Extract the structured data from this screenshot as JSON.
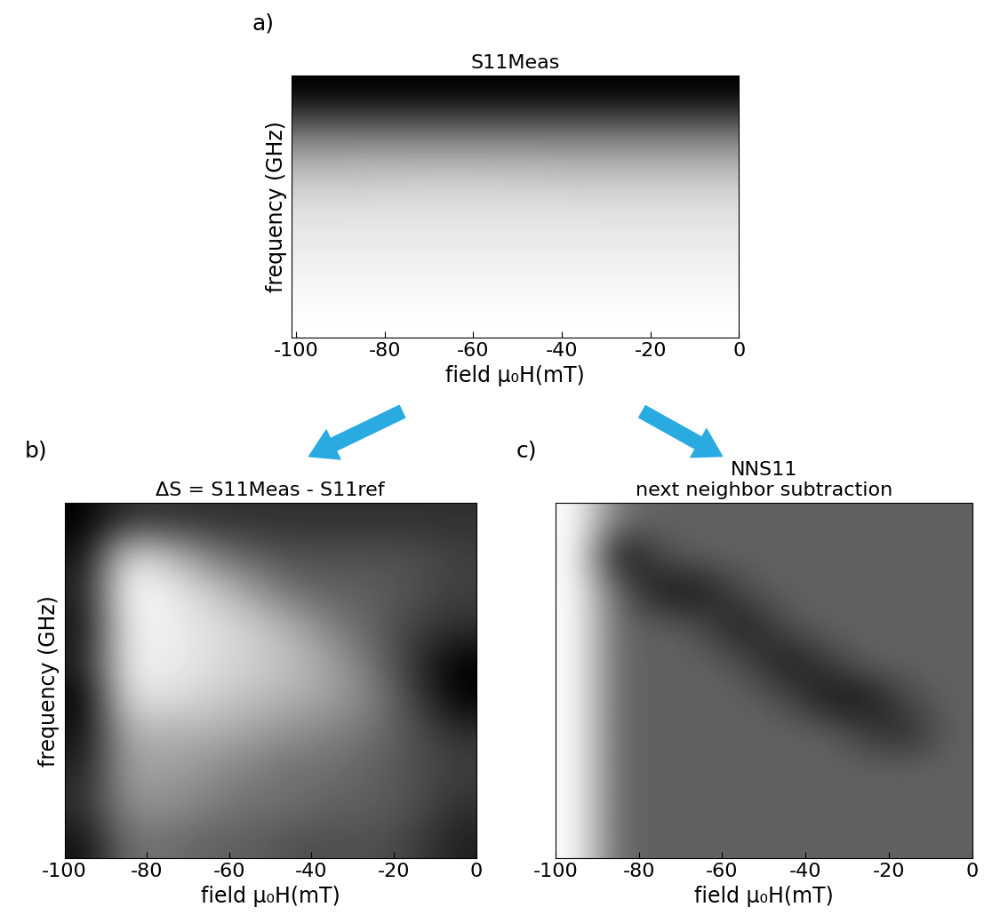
{
  "chart_data": [
    {
      "type": "heatmap",
      "annotations": [
        "a)"
      ],
      "title": "S11Meas",
      "xlabel": "field μ₀H(mT)",
      "ylabel": "frequency (GHz)",
      "xlim": [
        -101,
        0
      ],
      "xticks": [
        -100,
        -80,
        -60,
        -40,
        -20,
        0
      ],
      "tick_labels": "x",
      "cells": [
        [
          0.1,
          0.1,
          0.1,
          0.1,
          0.1,
          0.1,
          0.1,
          0.1,
          0.1,
          0.1
        ],
        [
          0.3,
          0.3,
          0.3,
          0.3,
          0.3,
          0.3,
          0.3,
          0.3,
          0.3,
          0.3
        ],
        [
          0.55,
          0.55,
          0.55,
          0.55,
          0.55,
          0.55,
          0.55,
          0.55,
          0.55,
          0.55
        ],
        [
          0.72,
          0.72,
          0.73,
          0.73,
          0.73,
          0.72,
          0.72,
          0.72,
          0.72,
          0.72
        ],
        [
          0.82,
          0.82,
          0.83,
          0.83,
          0.83,
          0.83,
          0.82,
          0.82,
          0.82,
          0.82
        ],
        [
          0.88,
          0.88,
          0.88,
          0.88,
          0.88,
          0.88,
          0.88,
          0.88,
          0.88,
          0.88
        ],
        [
          0.9,
          0.9,
          0.9,
          0.9,
          0.9,
          0.9,
          0.9,
          0.9,
          0.9,
          0.9
        ],
        [
          0.93,
          0.93,
          0.93,
          0.93,
          0.93,
          0.93,
          0.93,
          0.93,
          0.93,
          0.93
        ],
        [
          0.95,
          0.95,
          0.95,
          0.95,
          0.95,
          0.95,
          0.95,
          0.95,
          0.95,
          0.95
        ],
        [
          0.97,
          0.97,
          0.97,
          0.97,
          0.97,
          0.97,
          0.97,
          0.97,
          0.97,
          0.97
        ]
      ]
    },
    {
      "type": "heatmap",
      "annotations": [
        "b)"
      ],
      "title": "ΔS = S11Meas - S11ref",
      "xlabel": "field μ₀H(mT)",
      "ylabel": "frequency (GHz)",
      "xlim": [
        -100,
        0
      ],
      "xticks": [
        -100,
        -80,
        -60,
        -40,
        -20,
        0
      ],
      "tick_labels": "x",
      "cells": [
        [
          0.15,
          0.3,
          0.3,
          0.3,
          0.3,
          0.3,
          0.3,
          0.3,
          0.3,
          0.3
        ],
        [
          0.2,
          0.85,
          0.75,
          0.55,
          0.45,
          0.4,
          0.4,
          0.4,
          0.4,
          0.35
        ],
        [
          0.25,
          0.95,
          0.9,
          0.8,
          0.65,
          0.5,
          0.45,
          0.45,
          0.4,
          0.35
        ],
        [
          0.2,
          0.9,
          0.9,
          0.85,
          0.8,
          0.7,
          0.55,
          0.45,
          0.35,
          0.3
        ],
        [
          0.25,
          0.9,
          0.9,
          0.85,
          0.8,
          0.75,
          0.65,
          0.5,
          0.3,
          0.15
        ],
        [
          0.15,
          0.85,
          0.85,
          0.8,
          0.75,
          0.7,
          0.65,
          0.55,
          0.35,
          0.15
        ],
        [
          0.2,
          0.7,
          0.7,
          0.7,
          0.65,
          0.6,
          0.55,
          0.5,
          0.4,
          0.3
        ],
        [
          0.25,
          0.65,
          0.65,
          0.6,
          0.55,
          0.5,
          0.5,
          0.45,
          0.4,
          0.35
        ],
        [
          0.3,
          0.6,
          0.6,
          0.55,
          0.5,
          0.5,
          0.45,
          0.45,
          0.4,
          0.3
        ],
        [
          0.2,
          0.5,
          0.5,
          0.45,
          0.45,
          0.4,
          0.4,
          0.4,
          0.35,
          0.25
        ]
      ]
    },
    {
      "type": "heatmap",
      "annotations": [
        "c)"
      ],
      "title": "NNS11",
      "subtitle": "next neighbor subtraction",
      "xlabel": "field μ₀H(mT)",
      "xlim": [
        -100,
        0
      ],
      "xticks": [
        -100,
        -80,
        -60,
        -40,
        -20,
        0
      ],
      "tick_labels": "x",
      "cells": [
        [
          0.85,
          0.5,
          0.45,
          0.45,
          0.45,
          0.45,
          0.45,
          0.45,
          0.45,
          0.45
        ],
        [
          0.85,
          0.2,
          0.4,
          0.45,
          0.45,
          0.45,
          0.45,
          0.45,
          0.45,
          0.45
        ],
        [
          0.85,
          0.45,
          0.25,
          0.25,
          0.4,
          0.45,
          0.45,
          0.45,
          0.45,
          0.45
        ],
        [
          0.85,
          0.45,
          0.45,
          0.4,
          0.25,
          0.4,
          0.45,
          0.45,
          0.45,
          0.45
        ],
        [
          0.85,
          0.45,
          0.45,
          0.45,
          0.4,
          0.25,
          0.35,
          0.45,
          0.45,
          0.45
        ],
        [
          0.85,
          0.45,
          0.45,
          0.45,
          0.45,
          0.4,
          0.25,
          0.25,
          0.4,
          0.45
        ],
        [
          0.85,
          0.45,
          0.45,
          0.45,
          0.45,
          0.45,
          0.45,
          0.35,
          0.3,
          0.45
        ],
        [
          0.85,
          0.45,
          0.45,
          0.45,
          0.45,
          0.45,
          0.45,
          0.45,
          0.45,
          0.45
        ],
        [
          0.85,
          0.45,
          0.45,
          0.45,
          0.45,
          0.45,
          0.45,
          0.45,
          0.45,
          0.45
        ],
        [
          0.85,
          0.45,
          0.45,
          0.45,
          0.45,
          0.45,
          0.45,
          0.45,
          0.45,
          0.45
        ]
      ]
    }
  ]
}
